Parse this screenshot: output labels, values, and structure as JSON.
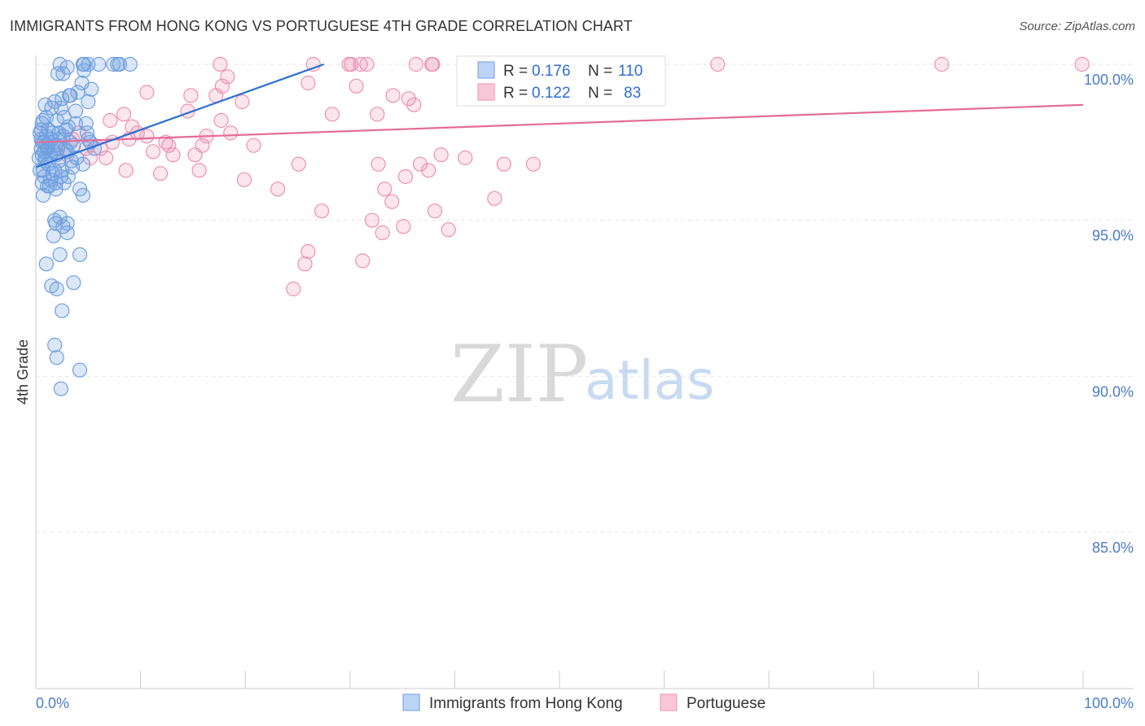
{
  "header": {
    "title": "IMMIGRANTS FROM HONG KONG VS PORTUGUESE 4TH GRADE CORRELATION CHART",
    "source": "Source: ZipAtlas.com"
  },
  "watermark": {
    "zip": "ZIP",
    "atlas": "atlas"
  },
  "colors": {
    "blue": "#6f9fe0",
    "blue_line": "#2e6fd1",
    "pink": "#ef8fb0",
    "pink_line": "#e56b97",
    "tick": "#4a7cc9"
  },
  "chart_data": {
    "type": "scatter",
    "title": "IMMIGRANTS FROM HONG KONG VS PORTUGUESE 4TH GRADE CORRELATION CHART",
    "xlabel": "",
    "ylabel": "4th Grade",
    "xlim": [
      0,
      100
    ],
    "ylim": [
      80.5,
      100.7
    ],
    "x_tick_labels": [
      "0.0%",
      "100.0%"
    ],
    "y_ticks": [
      100,
      95,
      90,
      85
    ],
    "y_tick_labels": [
      "100.0%",
      "95.0%",
      "90.0%",
      "85.0%"
    ],
    "legend": [
      {
        "swatch": "blue",
        "r_label": "R = ",
        "r_value": "0.176",
        "n_label": "N = ",
        "n_value": "110"
      },
      {
        "swatch": "pink",
        "r_label": "R = ",
        "r_value": "0.122",
        "n_label": "N = ",
        "n_value": "83"
      }
    ],
    "series": [
      {
        "name": "Immigrants from Hong Kong",
        "color": "blue",
        "trend": {
          "x0": 0,
          "y0": 96.7,
          "x1": 27.5,
          "y1": 100.0
        },
        "points": [
          [
            4.5,
            100
          ],
          [
            4.6,
            100
          ],
          [
            5.0,
            100
          ],
          [
            6.0,
            100
          ],
          [
            7.4,
            100
          ],
          [
            8.0,
            100
          ],
          [
            9.0,
            100
          ],
          [
            7.8,
            100
          ],
          [
            4.6,
            99.8
          ],
          [
            2.3,
            100
          ],
          [
            2.1,
            99.7
          ],
          [
            4.4,
            99.4
          ],
          [
            5.3,
            99.2
          ],
          [
            5.0,
            98.8
          ],
          [
            1.8,
            98.8
          ],
          [
            2.5,
            98.9
          ],
          [
            3.2,
            99.0
          ],
          [
            3.8,
            98.5
          ],
          [
            0.9,
            98.7
          ],
          [
            1.0,
            98.3
          ],
          [
            2.0,
            98.2
          ],
          [
            3.1,
            98.0
          ],
          [
            4.8,
            98.1
          ],
          [
            0.6,
            98.1
          ],
          [
            0.4,
            97.8
          ],
          [
            1.2,
            97.9
          ],
          [
            1.6,
            97.8
          ],
          [
            2.6,
            97.7
          ],
          [
            0.8,
            97.5
          ],
          [
            1.3,
            97.5
          ],
          [
            1.9,
            97.4
          ],
          [
            2.8,
            97.3
          ],
          [
            3.6,
            97.4
          ],
          [
            5.0,
            97.6
          ],
          [
            0.5,
            97.3
          ],
          [
            0.9,
            97.0
          ],
          [
            1.4,
            97.1
          ],
          [
            2.2,
            96.9
          ],
          [
            3.4,
            96.9
          ],
          [
            4.5,
            96.8
          ],
          [
            0.7,
            96.6
          ],
          [
            1.6,
            96.5
          ],
          [
            2.4,
            96.4
          ],
          [
            3.5,
            96.7
          ],
          [
            0.6,
            96.2
          ],
          [
            1.1,
            96.1
          ],
          [
            1.9,
            96.0
          ],
          [
            2.7,
            96.2
          ],
          [
            4.2,
            96.0
          ],
          [
            0.7,
            95.8
          ],
          [
            4.5,
            95.8
          ],
          [
            2.3,
            95.1
          ],
          [
            1.8,
            95.0
          ],
          [
            3.0,
            94.9
          ],
          [
            1.9,
            94.9
          ],
          [
            2.6,
            94.8
          ],
          [
            3.0,
            94.6
          ],
          [
            1.7,
            94.5
          ],
          [
            4.2,
            93.9
          ],
          [
            2.3,
            93.9
          ],
          [
            1.0,
            93.6
          ],
          [
            3.6,
            93.0
          ],
          [
            1.5,
            92.9
          ],
          [
            2.0,
            92.8
          ],
          [
            2.5,
            92.1
          ],
          [
            1.8,
            91.0
          ],
          [
            2.0,
            90.6
          ],
          [
            4.2,
            90.2
          ],
          [
            2.4,
            89.6
          ],
          [
            0.5,
            97.9
          ],
          [
            0.8,
            97.2
          ],
          [
            1.2,
            96.8
          ],
          [
            1.5,
            97.6
          ],
          [
            2.1,
            97.3
          ],
          [
            2.9,
            97.9
          ],
          [
            3.3,
            97.5
          ],
          [
            0.3,
            97.0
          ],
          [
            0.6,
            97.5
          ],
          [
            1.0,
            97.7
          ],
          [
            1.4,
            96.3
          ],
          [
            2.0,
            97.1
          ],
          [
            2.5,
            96.6
          ],
          [
            3.0,
            97.2
          ],
          [
            3.9,
            97.0
          ],
          [
            0.4,
            96.6
          ],
          [
            0.9,
            96.9
          ],
          [
            1.7,
            97.2
          ],
          [
            2.2,
            97.8
          ],
          [
            2.7,
            98.3
          ],
          [
            3.8,
            98.1
          ],
          [
            4.9,
            97.8
          ],
          [
            5.6,
            97.3
          ],
          [
            0.5,
            97.6
          ],
          [
            1.1,
            97.3
          ],
          [
            1.8,
            96.6
          ],
          [
            2.4,
            98.6
          ],
          [
            3.3,
            99.0
          ],
          [
            4.0,
            99.1
          ],
          [
            0.7,
            98.2
          ],
          [
            1.5,
            98.6
          ],
          [
            2.6,
            99.7
          ],
          [
            3.0,
            99.9
          ],
          [
            0.8,
            96.4
          ],
          [
            1.3,
            96.1
          ],
          [
            1.9,
            96.2
          ],
          [
            0.6,
            97.1
          ],
          [
            1.0,
            97.4
          ],
          [
            2.3,
            97.6
          ],
          [
            3.1,
            96.4
          ],
          [
            5.2,
            97.5
          ]
        ]
      },
      {
        "name": "Portuguese",
        "color": "pink",
        "trend": {
          "x0": 0,
          "y0": 97.5,
          "x1": 100,
          "y1": 98.7
        },
        "points": [
          [
            17.6,
            100
          ],
          [
            26.5,
            100
          ],
          [
            29.9,
            100
          ],
          [
            30.1,
            100
          ],
          [
            31.6,
            100
          ],
          [
            31.0,
            100
          ],
          [
            36.3,
            100
          ],
          [
            37.8,
            100
          ],
          [
            37.9,
            100
          ],
          [
            43.0,
            100
          ],
          [
            41.6,
            100
          ],
          [
            46.4,
            100
          ],
          [
            56.2,
            100
          ],
          [
            65.1,
            100
          ],
          [
            86.5,
            100
          ],
          [
            99.9,
            100
          ],
          [
            18.3,
            99.6
          ],
          [
            17.2,
            99.0
          ],
          [
            17.8,
            99.3
          ],
          [
            26.0,
            99.4
          ],
          [
            30.6,
            99.3
          ],
          [
            34.1,
            99.0
          ],
          [
            35.6,
            98.9
          ],
          [
            44.9,
            99.2
          ],
          [
            10.6,
            99.1
          ],
          [
            14.8,
            99.0
          ],
          [
            19.7,
            98.8
          ],
          [
            14.5,
            98.5
          ],
          [
            32.6,
            98.4
          ],
          [
            36.1,
            98.7
          ],
          [
            28.3,
            98.4
          ],
          [
            8.4,
            98.4
          ],
          [
            7.1,
            98.2
          ],
          [
            9.2,
            98.0
          ],
          [
            10.6,
            97.7
          ],
          [
            15.9,
            97.4
          ],
          [
            18.6,
            97.8
          ],
          [
            17.7,
            98.2
          ],
          [
            8.9,
            97.6
          ],
          [
            6.2,
            97.3
          ],
          [
            7.3,
            97.5
          ],
          [
            12.7,
            97.4
          ],
          [
            11.2,
            97.2
          ],
          [
            13.1,
            97.1
          ],
          [
            15.2,
            97.1
          ],
          [
            3.5,
            97.6
          ],
          [
            4.8,
            97.3
          ],
          [
            5.2,
            97.0
          ],
          [
            2.1,
            97.4
          ],
          [
            3.0,
            97.1
          ],
          [
            8.6,
            96.6
          ],
          [
            11.9,
            96.5
          ],
          [
            15.6,
            96.6
          ],
          [
            19.9,
            96.3
          ],
          [
            23.1,
            96.0
          ],
          [
            25.1,
            96.8
          ],
          [
            32.7,
            96.8
          ],
          [
            36.7,
            96.8
          ],
          [
            37.5,
            96.6
          ],
          [
            38.7,
            97.1
          ],
          [
            41.0,
            97.0
          ],
          [
            44.7,
            96.8
          ],
          [
            47.5,
            96.8
          ],
          [
            35.3,
            96.4
          ],
          [
            33.3,
            96.0
          ],
          [
            43.8,
            95.7
          ],
          [
            27.3,
            95.3
          ],
          [
            34.0,
            95.6
          ],
          [
            38.1,
            95.3
          ],
          [
            32.1,
            95.0
          ],
          [
            35.1,
            94.8
          ],
          [
            33.1,
            94.6
          ],
          [
            26.0,
            94.0
          ],
          [
            25.7,
            93.6
          ],
          [
            24.6,
            92.8
          ],
          [
            31.2,
            93.7
          ],
          [
            39.4,
            94.7
          ],
          [
            4.1,
            97.8
          ],
          [
            6.7,
            97.0
          ],
          [
            9.7,
            97.8
          ],
          [
            12.4,
            97.5
          ],
          [
            16.3,
            97.7
          ],
          [
            20.8,
            97.4
          ]
        ]
      }
    ]
  }
}
